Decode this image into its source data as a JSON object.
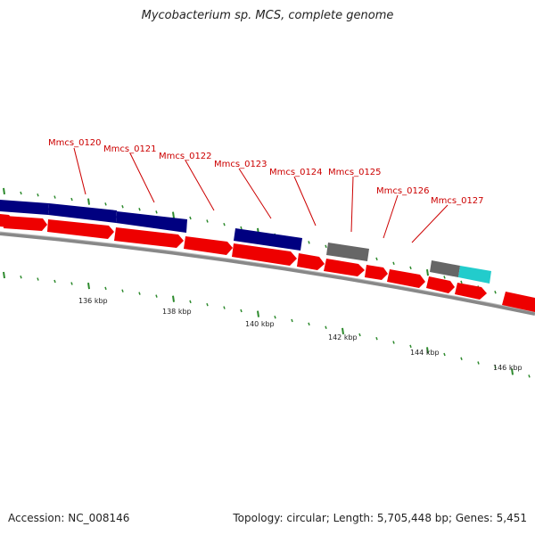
{
  "title": "Mycobacterium sp. MCS, complete genome",
  "accession": "Accession: NC_008146",
  "stats": "Topology: circular; Length: 5,705,448 bp; Genes: 5,451",
  "colors": {
    "cds": "#ff0000",
    "blue_feature": "#000080",
    "gray_feature": "#777777",
    "cyan_feature": "#22cccc",
    "backbone": "#888888",
    "tick": "#2d8a2d",
    "label": "#cc0000"
  },
  "gene_labels": [
    "Mmcs_0120",
    "Mmcs_0121",
    "Mmcs_0122",
    "Mmcs_0123",
    "Mmcs_0124",
    "Mmcs_0125",
    "Mmcs_0126",
    "Mmcs_0127"
  ],
  "scale_labels": [
    "136 kbp",
    "138 kbp",
    "140 kbp",
    "142 kbp",
    "144 kbp",
    "146 kbp"
  ]
}
